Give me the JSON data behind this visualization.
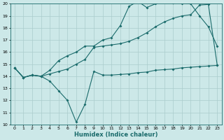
{
  "title": "",
  "xlabel": "Humidex (Indice chaleur)",
  "bg_color": "#cce8e8",
  "grid_color": "#aacccc",
  "line_color": "#1a6b6b",
  "xlim": [
    -0.5,
    23.5
  ],
  "ylim": [
    10,
    20
  ],
  "yticks": [
    10,
    11,
    12,
    13,
    14,
    15,
    16,
    17,
    18,
    19,
    20
  ],
  "xticks": [
    0,
    1,
    2,
    3,
    4,
    5,
    6,
    7,
    8,
    9,
    10,
    11,
    12,
    13,
    14,
    15,
    16,
    17,
    18,
    19,
    20,
    21,
    22,
    23
  ],
  "line1_x": [
    0,
    1,
    2,
    3,
    4,
    5,
    6,
    7,
    8,
    9,
    10,
    11,
    12,
    13,
    14,
    15,
    16,
    17,
    18,
    19,
    20,
    21,
    22,
    23
  ],
  "line1_y": [
    14.7,
    13.9,
    14.1,
    14.0,
    13.6,
    12.8,
    12.0,
    10.2,
    11.7,
    14.4,
    14.1,
    14.1,
    14.15,
    14.2,
    14.3,
    14.35,
    14.5,
    14.55,
    14.6,
    14.7,
    14.75,
    14.8,
    14.85,
    14.9
  ],
  "line2_x": [
    0,
    1,
    2,
    3,
    4,
    5,
    6,
    7,
    8,
    9,
    10,
    11,
    12,
    13,
    14,
    15,
    16,
    17,
    18,
    19,
    20,
    21,
    22,
    23
  ],
  "line2_y": [
    14.7,
    13.9,
    14.1,
    14.0,
    14.5,
    15.3,
    15.7,
    16.0,
    16.5,
    16.5,
    17.0,
    17.2,
    18.2,
    19.8,
    20.2,
    19.7,
    20.0,
    20.2,
    20.1,
    20.05,
    20.0,
    19.0,
    18.1,
    16.5
  ],
  "line3_x": [
    0,
    1,
    2,
    3,
    4,
    5,
    6,
    7,
    8,
    9,
    10,
    11,
    12,
    13,
    14,
    15,
    16,
    17,
    18,
    19,
    20,
    21,
    22,
    23
  ],
  "line3_y": [
    14.7,
    13.9,
    14.1,
    14.0,
    14.2,
    14.4,
    14.6,
    15.0,
    15.4,
    16.4,
    16.5,
    16.6,
    16.7,
    16.9,
    17.2,
    17.6,
    18.1,
    18.5,
    18.8,
    19.0,
    19.1,
    19.9,
    19.95,
    14.95
  ]
}
